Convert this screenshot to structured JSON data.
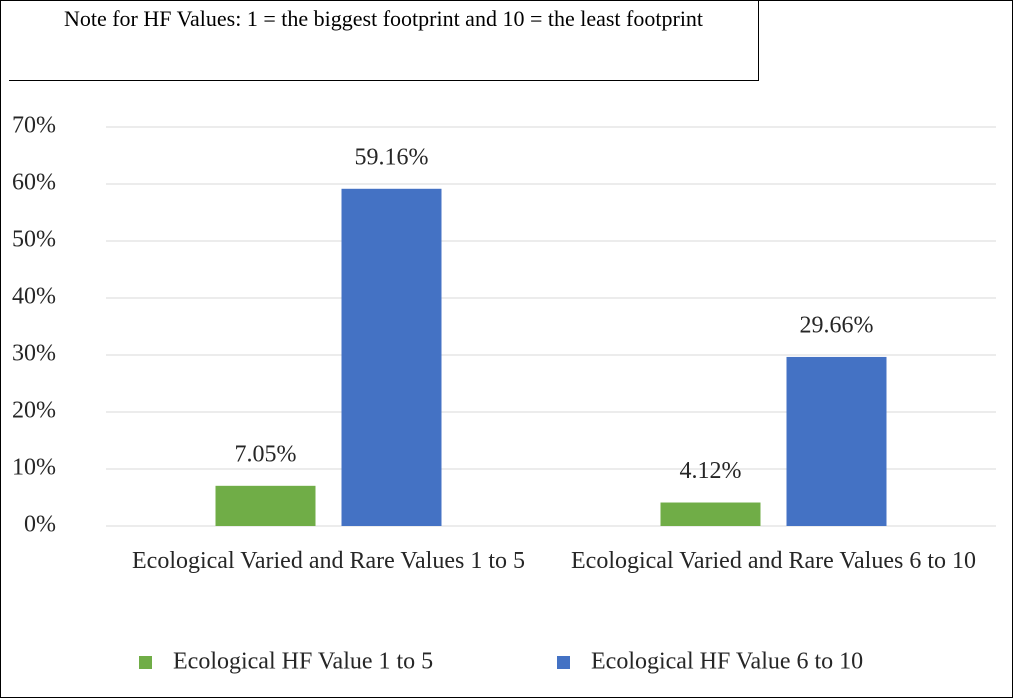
{
  "chart_data": {
    "type": "bar",
    "title": "Note for HF Values: 1 = the biggest footprint and 10 = the least footprint",
    "categories": [
      "Ecological Varied and Rare Values 1 to 5",
      "Ecological Varied and Rare Values 6 to 10"
    ],
    "series": [
      {
        "name": "Ecological HF Value 1 to 5",
        "color": "#70ad47",
        "values": [
          7.05,
          4.12
        ],
        "value_labels": [
          "7.05%",
          "4.12%"
        ]
      },
      {
        "name": "Ecological HF Value 6 to 10",
        "color": "#4472c4",
        "values": [
          59.16,
          29.66
        ],
        "value_labels": [
          "59.16%",
          "29.66%"
        ]
      }
    ],
    "ylim": [
      0,
      70
    ],
    "yticks": [
      {
        "value": 0,
        "label": "0%"
      },
      {
        "value": 10,
        "label": "10%"
      },
      {
        "value": 20,
        "label": "20%"
      },
      {
        "value": 30,
        "label": "30%"
      },
      {
        "value": 40,
        "label": "40%"
      },
      {
        "value": 50,
        "label": "50%"
      },
      {
        "value": 60,
        "label": "60%"
      },
      {
        "value": 70,
        "label": "70%"
      }
    ],
    "grid": true,
    "legend": "bottom"
  }
}
